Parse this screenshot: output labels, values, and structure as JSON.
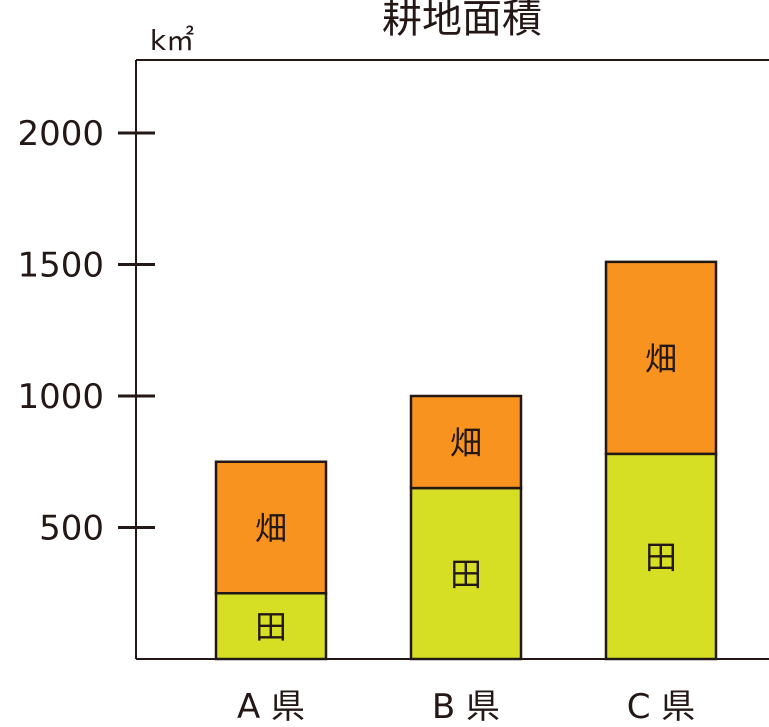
{
  "chart_data": {
    "type": "bar",
    "stacked": true,
    "title": "耕地面積",
    "unit": "k㎡",
    "categories": [
      "A 県",
      "B 県",
      "C 県"
    ],
    "series": [
      {
        "name": "田",
        "color": "#d6df23",
        "values": [
          250,
          650,
          780
        ]
      },
      {
        "name": "畑",
        "color": "#f7931e",
        "values": [
          500,
          350,
          730
        ]
      }
    ],
    "yticks": [
      500,
      1000,
      1500,
      2000
    ],
    "ylim": [
      0,
      2250
    ],
    "grid": false,
    "legend": "none"
  }
}
